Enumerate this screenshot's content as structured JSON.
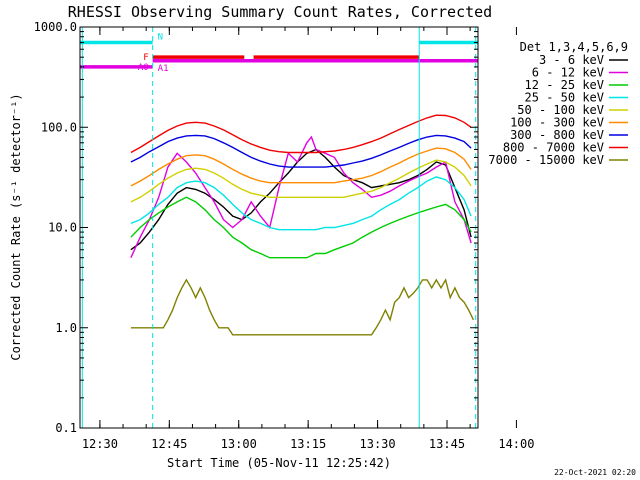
{
  "chart_data": {
    "type": "line",
    "title": "RHESSI Observing Summary Count Rates, Corrected",
    "xlabel": "Start Time (05-Nov-11 12:25:42)",
    "ylabel": "Corrected Count Rate (s⁻¹ detector⁻¹)",
    "yscale": "log",
    "ylim": [
      0.1,
      1000
    ],
    "xlim_minutes": [
      0,
      86
    ],
    "y_ticks": [
      {
        "value": 1000,
        "label": "1000.0"
      },
      {
        "value": 100,
        "label": "100.0"
      },
      {
        "value": 10,
        "label": "10.0"
      },
      {
        "value": 1,
        "label": "1.0"
      },
      {
        "value": 0.1,
        "label": "0.1"
      }
    ],
    "x_ticks": [
      {
        "value": 4.3,
        "label": "12:30"
      },
      {
        "value": 19.3,
        "label": "12:45"
      },
      {
        "value": 34.3,
        "label": "13:00"
      },
      {
        "value": 49.3,
        "label": "13:15"
      },
      {
        "value": 64.3,
        "label": "13:30"
      },
      {
        "value": 79.3,
        "label": "13:45"
      },
      {
        "value": 94.3,
        "label": "14:00"
      }
    ],
    "legend_header": "Det 1,3,4,5,6,9",
    "timestamp": "22-Oct-2021 02:20",
    "series": [
      {
        "name": "3 - 6 keV",
        "color": "#000000",
        "x": [
          11,
          13,
          15,
          17,
          19,
          21,
          23,
          25,
          27,
          29,
          31,
          33,
          35,
          37,
          39,
          41,
          43,
          45,
          47,
          49,
          51,
          53,
          55,
          57,
          59,
          61,
          63,
          65,
          67,
          69,
          71,
          73,
          75,
          77,
          79,
          81,
          83,
          84.5
        ],
        "y": [
          6,
          7,
          9,
          12,
          17,
          22,
          25,
          24,
          22,
          19,
          16,
          13,
          12,
          14,
          18,
          22,
          28,
          35,
          45,
          55,
          60,
          50,
          40,
          33,
          30,
          28,
          25,
          26,
          27,
          28,
          30,
          33,
          38,
          45,
          42,
          25,
          15,
          8
        ]
      },
      {
        "name": "6 - 12 keV",
        "color": "#e000e0",
        "x": [
          11,
          13,
          15,
          17,
          19,
          21,
          23,
          25,
          27,
          29,
          31,
          33,
          35,
          37,
          39,
          41,
          43,
          45,
          47,
          49,
          50,
          51,
          53,
          55,
          57,
          59,
          61,
          63,
          65,
          67,
          69,
          71,
          73,
          75,
          77,
          79,
          81,
          83,
          84.5
        ],
        "y": [
          5,
          8,
          12,
          20,
          40,
          55,
          45,
          35,
          25,
          18,
          12,
          10,
          12,
          18,
          13,
          10,
          25,
          55,
          45,
          70,
          80,
          60,
          55,
          50,
          35,
          28,
          24,
          20,
          21,
          23,
          26,
          29,
          32,
          35,
          40,
          45,
          18,
          12,
          7
        ]
      },
      {
        "name": "12 - 25 keV",
        "color": "#00cc00",
        "x": [
          11,
          13,
          15,
          17,
          19,
          21,
          23,
          25,
          27,
          29,
          31,
          33,
          35,
          37,
          39,
          41,
          43,
          45,
          47,
          49,
          51,
          53,
          55,
          57,
          59,
          61,
          63,
          65,
          67,
          69,
          71,
          73,
          75,
          77,
          79,
          81,
          83,
          84.5
        ],
        "y": [
          8,
          10,
          12,
          14,
          16,
          18,
          20,
          18,
          15,
          12,
          10,
          8,
          7,
          6,
          5.5,
          5,
          5,
          5,
          5,
          5,
          5.5,
          5.5,
          6,
          6.5,
          7,
          8,
          9,
          10,
          11,
          12,
          13,
          14,
          15,
          16,
          17,
          15,
          12,
          9
        ]
      },
      {
        "name": "25 - 50 keV",
        "color": "#00e5e5",
        "x": [
          11,
          13,
          15,
          17,
          19,
          21,
          23,
          25,
          27,
          29,
          31,
          33,
          35,
          37,
          39,
          41,
          43,
          45,
          47,
          49,
          51,
          53,
          55,
          57,
          59,
          61,
          63,
          65,
          67,
          69,
          71,
          73,
          75,
          77,
          79,
          81,
          83,
          84.5
        ],
        "y": [
          11,
          12,
          14,
          17,
          20,
          25,
          28,
          29,
          28,
          25,
          21,
          17,
          14,
          12,
          11,
          10,
          9.5,
          9.5,
          9.5,
          9.5,
          9.5,
          10,
          10,
          10.5,
          11,
          12,
          13,
          15,
          17,
          19,
          22,
          25,
          29,
          32,
          30,
          25,
          19,
          13
        ]
      },
      {
        "name": "50 - 100 keV",
        "color": "#d0d000",
        "x": [
          11,
          13,
          15,
          17,
          19,
          21,
          23,
          25,
          27,
          29,
          31,
          33,
          35,
          37,
          39,
          41,
          43,
          45,
          47,
          49,
          51,
          53,
          55,
          57,
          59,
          61,
          63,
          65,
          67,
          69,
          71,
          73,
          75,
          77,
          79,
          81,
          83,
          84.5
        ],
        "y": [
          18,
          20,
          23,
          27,
          31,
          35,
          38,
          39,
          38,
          35,
          31,
          27,
          24,
          22,
          21,
          20,
          20,
          20,
          20,
          20,
          20,
          20,
          20,
          20,
          21,
          22,
          23,
          25,
          28,
          31,
          35,
          39,
          43,
          47,
          45,
          40,
          33,
          26
        ]
      },
      {
        "name": "100 - 300 keV",
        "color": "#ff8c00",
        "x": [
          11,
          13,
          15,
          17,
          19,
          21,
          23,
          25,
          27,
          29,
          31,
          33,
          35,
          37,
          39,
          41,
          43,
          45,
          47,
          49,
          51,
          53,
          55,
          57,
          59,
          61,
          63,
          65,
          67,
          69,
          71,
          73,
          75,
          77,
          79,
          81,
          83,
          84.5
        ],
        "y": [
          26,
          29,
          33,
          38,
          43,
          48,
          52,
          53,
          52,
          48,
          43,
          38,
          34,
          31,
          29,
          28,
          28,
          28,
          28,
          28,
          28,
          28,
          28,
          29,
          30,
          31,
          33,
          36,
          40,
          44,
          49,
          54,
          58,
          62,
          61,
          56,
          48,
          38
        ]
      },
      {
        "name": "300 - 800 keV",
        "color": "#0000e0",
        "x": [
          11,
          13,
          15,
          17,
          19,
          21,
          23,
          25,
          27,
          29,
          31,
          33,
          35,
          37,
          39,
          41,
          43,
          45,
          47,
          49,
          51,
          53,
          55,
          57,
          59,
          61,
          63,
          65,
          67,
          69,
          71,
          73,
          75,
          77,
          79,
          81,
          83,
          84.5
        ],
        "y": [
          45,
          50,
          57,
          64,
          72,
          78,
          82,
          83,
          82,
          77,
          70,
          63,
          56,
          50,
          46,
          43,
          41,
          40,
          40,
          40,
          40,
          40,
          41,
          42,
          44,
          46,
          49,
          53,
          58,
          63,
          69,
          75,
          80,
          83,
          82,
          78,
          72,
          62
        ]
      },
      {
        "name": "800 - 7000 keV",
        "color": "#f00000",
        "x": [
          11,
          13,
          15,
          17,
          19,
          21,
          23,
          25,
          27,
          29,
          31,
          33,
          35,
          37,
          39,
          41,
          43,
          45,
          47,
          49,
          51,
          53,
          55,
          57,
          59,
          61,
          63,
          65,
          67,
          69,
          71,
          73,
          75,
          77,
          79,
          81,
          83,
          84.5
        ],
        "y": [
          56,
          63,
          72,
          82,
          93,
          103,
          110,
          112,
          110,
          103,
          94,
          84,
          75,
          68,
          63,
          59,
          57,
          56,
          56,
          56,
          56,
          57,
          58,
          60,
          63,
          67,
          72,
          78,
          86,
          95,
          104,
          114,
          124,
          132,
          131,
          124,
          112,
          100
        ]
      },
      {
        "name": "7000 - 15000 keV",
        "color": "#808000",
        "x": [
          11,
          13,
          14.5,
          15,
          17,
          18,
          19,
          20,
          21,
          22,
          23,
          24,
          25,
          26,
          27,
          28,
          29,
          30,
          31,
          32,
          33,
          35,
          37,
          39,
          41,
          43,
          45,
          47,
          49,
          51,
          53,
          55,
          57,
          59,
          61,
          63,
          64,
          65,
          66,
          67,
          68,
          69,
          70,
          71,
          72,
          73,
          74,
          75,
          76,
          77,
          78,
          79,
          80,
          81,
          82,
          83,
          84,
          85
        ],
        "y": [
          1,
          1,
          1,
          1,
          1,
          1,
          1.2,
          1.5,
          2,
          2.5,
          3,
          2.5,
          2,
          2.5,
          2,
          1.5,
          1.2,
          1,
          1,
          1,
          0.85,
          0.85,
          0.85,
          0.85,
          0.85,
          0.85,
          0.85,
          0.85,
          0.85,
          0.85,
          0.85,
          0.85,
          0.85,
          0.85,
          0.85,
          0.85,
          1,
          1.2,
          1.5,
          1.2,
          1.8,
          2,
          2.5,
          2,
          2.2,
          2.5,
          3,
          3,
          2.5,
          3,
          2.5,
          3,
          2,
          2.5,
          2,
          1.8,
          1.5,
          1.2
        ]
      }
    ],
    "lines": {
      "N": {
        "label": "N",
        "color": "#00e5e5",
        "y": 700,
        "segments": [
          [
            0,
            15.7
          ],
          [
            73.3,
            86
          ]
        ]
      },
      "F": {
        "label": "F",
        "color": "#ee0000",
        "y": 500,
        "segments": [
          [
            15.7,
            35.5
          ],
          [
            37.5,
            73.3
          ]
        ]
      },
      "A0": {
        "label": "A0",
        "color": "#e000e0",
        "y": 400,
        "segments": [
          [
            0,
            15.7
          ]
        ]
      },
      "A1": {
        "label": "A1",
        "color": "#e000e0",
        "y": 460,
        "segments": [
          [
            15.7,
            86
          ]
        ]
      }
    },
    "vlines": [
      {
        "x": 0.5,
        "style": "solid"
      },
      {
        "x": 15.7,
        "style": "dashed"
      },
      {
        "x": 73.3,
        "style": "solid"
      },
      {
        "x": 85.5,
        "style": "dashed"
      }
    ]
  }
}
